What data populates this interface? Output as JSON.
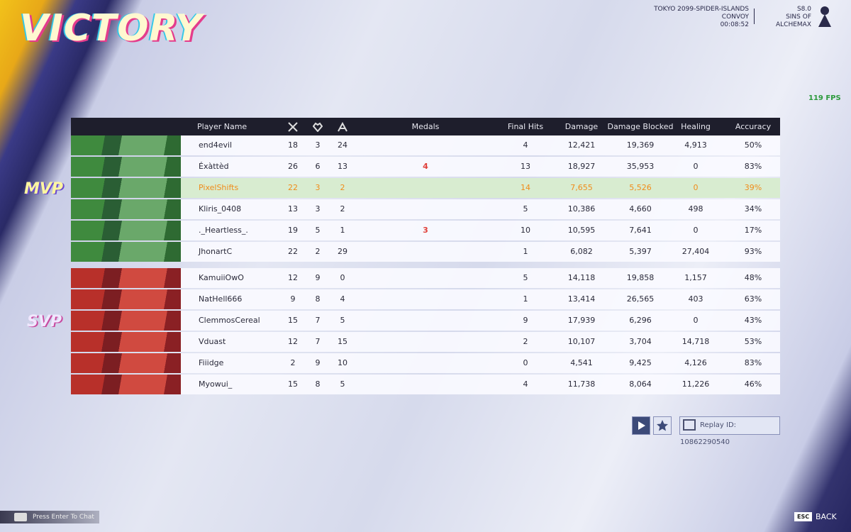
{
  "header": {
    "title": "VICTORY",
    "map": "TOKYO 2099-SPIDER-ISLANDS",
    "mode": "CONVOY",
    "time": "00:08:52",
    "season": "S8.0",
    "season_name": "SINS OF ALCHEMAX",
    "fps": "119 FPS"
  },
  "table": {
    "columns": [
      "Player Name",
      "Medals",
      "Final Hits",
      "Damage",
      "Damage Blocked",
      "Healing",
      "Accuracy"
    ],
    "teams": [
      {
        "badge": "MVP",
        "rows": [
          {
            "name": "end4evil",
            "k": "18",
            "d": "3",
            "a": "24",
            "medals": "",
            "final_hits": "4",
            "damage": "12,421",
            "blocked": "19,369",
            "healing": "4,913",
            "accuracy": "50%"
          },
          {
            "name": "Éxàttèd",
            "k": "26",
            "d": "6",
            "a": "13",
            "medals": "4",
            "final_hits": "13",
            "damage": "18,927",
            "blocked": "35,953",
            "healing": "0",
            "accuracy": "83%"
          },
          {
            "name": "PixelShifts",
            "k": "22",
            "d": "3",
            "a": "2",
            "medals": "",
            "final_hits": "14",
            "damage": "7,655",
            "blocked": "5,526",
            "healing": "0",
            "accuracy": "39%"
          },
          {
            "name": "Kliris_0408",
            "k": "13",
            "d": "3",
            "a": "2",
            "medals": "",
            "final_hits": "5",
            "damage": "10,386",
            "blocked": "4,660",
            "healing": "498",
            "accuracy": "34%"
          },
          {
            "name": "._Heartless_.",
            "k": "19",
            "d": "5",
            "a": "1",
            "medals": "3",
            "final_hits": "10",
            "damage": "10,595",
            "blocked": "7,641",
            "healing": "0",
            "accuracy": "17%"
          },
          {
            "name": "JhonartC",
            "k": "22",
            "d": "2",
            "a": "29",
            "medals": "",
            "final_hits": "1",
            "damage": "6,082",
            "blocked": "5,397",
            "healing": "27,404",
            "accuracy": "93%"
          }
        ]
      },
      {
        "badge": "SVP",
        "rows": [
          {
            "name": "KamuiiOwO",
            "k": "12",
            "d": "9",
            "a": "0",
            "medals": "",
            "final_hits": "5",
            "damage": "14,118",
            "blocked": "19,858",
            "healing": "1,157",
            "accuracy": "48%"
          },
          {
            "name": "NatHell666",
            "k": "9",
            "d": "8",
            "a": "4",
            "medals": "",
            "final_hits": "1",
            "damage": "13,414",
            "blocked": "26,565",
            "healing": "403",
            "accuracy": "63%"
          },
          {
            "name": "ClemmosCereal",
            "k": "15",
            "d": "7",
            "a": "5",
            "medals": "",
            "final_hits": "9",
            "damage": "17,939",
            "blocked": "6,296",
            "healing": "0",
            "accuracy": "43%"
          },
          {
            "name": "Vduast",
            "k": "12",
            "d": "7",
            "a": "15",
            "medals": "",
            "final_hits": "2",
            "damage": "10,107",
            "blocked": "3,704",
            "healing": "14,718",
            "accuracy": "53%"
          },
          {
            "name": "Fiiidge",
            "k": "2",
            "d": "9",
            "a": "10",
            "medals": "",
            "final_hits": "0",
            "damage": "4,541",
            "blocked": "9,425",
            "healing": "4,126",
            "accuracy": "83%"
          },
          {
            "name": "Myowui_",
            "k": "15",
            "d": "8",
            "a": "5",
            "medals": "",
            "final_hits": "4",
            "damage": "11,738",
            "blocked": "8,064",
            "healing": "11,226",
            "accuracy": "46%"
          }
        ]
      }
    ]
  },
  "footer": {
    "replay": "Replay ID: 10862290540",
    "chat": "Press Enter To Chat",
    "esc": "ESC",
    "back": "BACK"
  }
}
